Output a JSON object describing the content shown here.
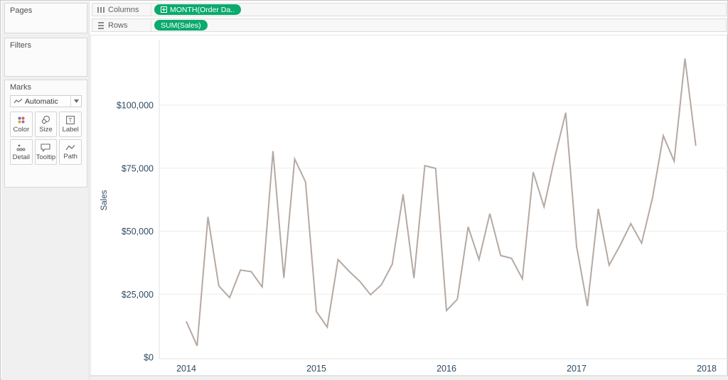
{
  "colors": {
    "pill_green": "#0aaa6e",
    "axis_text": "#2d4a63",
    "gridline": "#eeeeee",
    "axis_line": "#e0e0e0"
  },
  "sidebar": {
    "pages_card": {
      "title": "Pages"
    },
    "filters_card": {
      "title": "Filters"
    },
    "marks": {
      "title": "Marks",
      "mark_type": {
        "value": "Automatic"
      },
      "buttons": [
        {
          "label": "Color",
          "icon": "color-dots-icon"
        },
        {
          "label": "Size",
          "icon": "size-circles-icon"
        },
        {
          "label": "Label",
          "icon": "text-label-icon"
        },
        {
          "label": "Detail",
          "icon": "detail-dots-icon"
        },
        {
          "label": "Tooltip",
          "icon": "tooltip-bubble-icon"
        },
        {
          "label": "Path",
          "icon": "path-line-icon"
        }
      ]
    }
  },
  "shelves": {
    "columns": {
      "label": "Columns",
      "pill": {
        "text": "MONTH(Order Da..",
        "has_expand_icon": true
      }
    },
    "rows": {
      "label": "Rows",
      "pill": {
        "text": "SUM(Sales)"
      }
    }
  },
  "chart_data": {
    "type": "line",
    "title": "",
    "xlabel": "",
    "ylabel": "Sales",
    "grid": true,
    "legend": false,
    "ylim": [
      0,
      125000
    ],
    "y_ticks": [
      {
        "label": "$0",
        "value": 0
      },
      {
        "label": "$25,000",
        "value": 25000
      },
      {
        "label": "$50,000",
        "value": 50000
      },
      {
        "label": "$75,000",
        "value": 75000
      },
      {
        "label": "$100,000",
        "value": 100000
      }
    ],
    "x_ticks": [
      {
        "label": "2014",
        "month_index": 0
      },
      {
        "label": "2015",
        "month_index": 12
      },
      {
        "label": "2016",
        "month_index": 24
      },
      {
        "label": "2017",
        "month_index": 36
      },
      {
        "label": "2018",
        "month_index": 48
      }
    ],
    "categories": [
      "2014-01",
      "2014-02",
      "2014-03",
      "2014-04",
      "2014-05",
      "2014-06",
      "2014-07",
      "2014-08",
      "2014-09",
      "2014-10",
      "2014-11",
      "2014-12",
      "2015-01",
      "2015-02",
      "2015-03",
      "2015-04",
      "2015-05",
      "2015-06",
      "2015-07",
      "2015-08",
      "2015-09",
      "2015-10",
      "2015-11",
      "2015-12",
      "2016-01",
      "2016-02",
      "2016-03",
      "2016-04",
      "2016-05",
      "2016-06",
      "2016-07",
      "2016-08",
      "2016-09",
      "2016-10",
      "2016-11",
      "2016-12",
      "2017-01",
      "2017-02",
      "2017-03",
      "2017-04",
      "2017-05",
      "2017-06",
      "2017-07",
      "2017-08",
      "2017-09",
      "2017-10",
      "2017-11",
      "2017-12"
    ],
    "series": [
      {
        "name": "SUM(Sales)",
        "color": "#b5a9a2",
        "values": [
          14237,
          4520,
          55691,
          28295,
          23648,
          34595,
          33946,
          27909,
          81777,
          31453,
          78629,
          69545,
          18174,
          11951,
          38726,
          34195,
          30131,
          24797,
          28765,
          36898,
          64595,
          31404,
          75973,
          74920,
          18542,
          22978,
          51715,
          38750,
          56987,
          40344,
          39261,
          31115,
          73410,
          59687,
          79411,
          96999,
          43971,
          20301,
          58872,
          36522,
          44261,
          52981,
          45264,
          63121,
          87867,
          77776,
          118448,
          83829
        ]
      }
    ]
  }
}
